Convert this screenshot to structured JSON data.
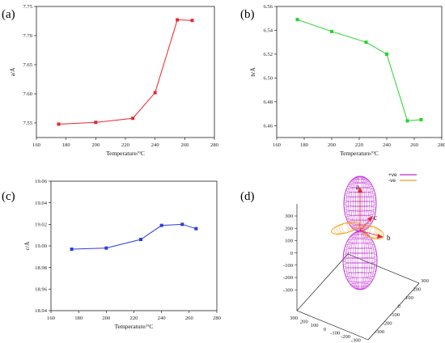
{
  "chart_data": [
    {
      "type": "line",
      "panel_label": "(a)",
      "xlabel": "Temperature/°C",
      "ylabel": "a/Å",
      "xlim": [
        160,
        280
      ],
      "ylim": [
        7.525,
        7.75
      ],
      "xticks": [
        "160",
        "180",
        "200",
        "220",
        "240",
        "260",
        "280"
      ],
      "yticks": [
        "7.55",
        "7.60",
        "7.65",
        "7.70",
        "7.75"
      ],
      "color": "#e8262b",
      "series": [
        {
          "x": [
            175,
            200,
            225,
            240,
            255,
            265
          ],
          "y": [
            7.548,
            7.551,
            7.558,
            7.602,
            7.727,
            7.726
          ]
        }
      ]
    },
    {
      "type": "line",
      "panel_label": "(b)",
      "xlabel": "Temperature/°C",
      "ylabel": "b/Å",
      "xlim": [
        160,
        280
      ],
      "ylim": [
        6.45,
        6.56
      ],
      "xticks": [
        "160",
        "180",
        "200",
        "220",
        "240",
        "260",
        "280"
      ],
      "yticks": [
        "6.46",
        "6.48",
        "6.50",
        "6.52",
        "6.54",
        "6.56"
      ],
      "color": "#22d32a",
      "series": [
        {
          "x": [
            175,
            200,
            225,
            240,
            255,
            265
          ],
          "y": [
            6.549,
            6.539,
            6.53,
            6.52,
            6.464,
            6.465
          ]
        }
      ]
    },
    {
      "type": "line",
      "panel_label": "(c)",
      "xlabel": "Temperature/°C",
      "ylabel": "c/Å",
      "xlim": [
        160,
        280
      ],
      "ylim": [
        18.94,
        19.06
      ],
      "xticks": [
        "160",
        "180",
        "200",
        "220",
        "240",
        "260",
        "280"
      ],
      "yticks": [
        "18.94",
        "18.96",
        "18.98",
        "19.00",
        "19.02",
        "19.04",
        "19.06"
      ],
      "color": "#2a3be0",
      "series": [
        {
          "x": [
            175,
            200,
            225,
            240,
            255,
            265
          ],
          "y": [
            18.997,
            18.998,
            19.006,
            19.019,
            19.02,
            19.016
          ]
        }
      ]
    }
  ],
  "panel_d": {
    "panel_label": "(d)",
    "legend": [
      {
        "label": "+ve",
        "color": "#c02ad4"
      },
      {
        "label": "-ve",
        "color": "#f2a01c"
      }
    ],
    "vector_labels": {
      "a": "a",
      "b": "b",
      "c": "c"
    },
    "z_ticks": [
      "300",
      "200",
      "100",
      "0",
      "-100",
      "-200",
      "-300"
    ],
    "x_ticks": [
      "300",
      "200",
      "100",
      "0",
      "-100",
      "-200",
      "-300"
    ],
    "y_ticks": [
      "-300",
      "-200",
      "-100",
      "0",
      "100",
      "200",
      "300"
    ]
  }
}
